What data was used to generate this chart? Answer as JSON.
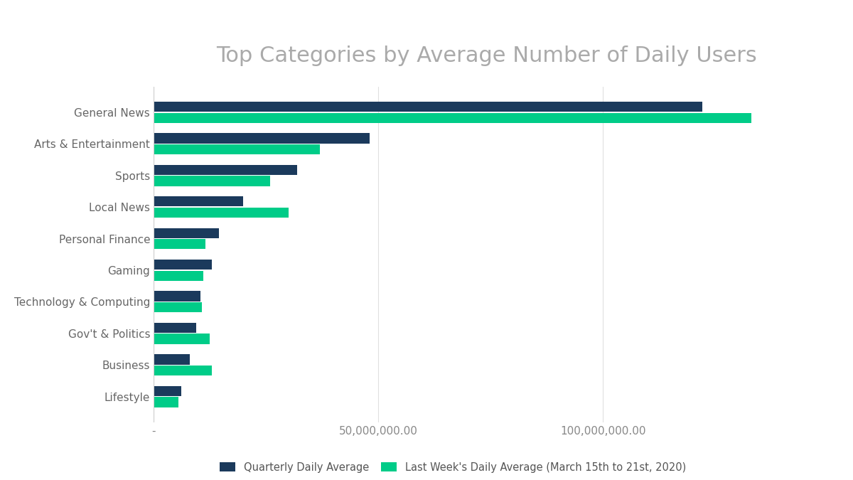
{
  "title": "Top Categories by Average Number of Daily Users",
  "categories": [
    "General News",
    "Arts & Entertainment",
    "Sports",
    "Local News",
    "Personal Finance",
    "Gaming",
    "Technology & Computing",
    "Gov't & Politics",
    "Business",
    "Lifestyle"
  ],
  "quarterly_daily_avg": [
    122000000,
    48000000,
    32000000,
    20000000,
    14500000,
    13000000,
    10500000,
    9500000,
    8000000,
    6200000
  ],
  "last_week_daily_avg": [
    133000000,
    37000000,
    26000000,
    30000000,
    11500000,
    11000000,
    10800000,
    12500000,
    13000000,
    5500000
  ],
  "color_quarterly": "#1b3a5c",
  "color_last_week": "#00cc88",
  "title_color": "#aaaaaa",
  "background_color": "#ffffff",
  "xlim": [
    0,
    148000000
  ],
  "xticks": [
    0,
    50000000,
    100000000
  ],
  "xtick_labels": [
    "-",
    "50,000,000.00",
    "100,000,000.00"
  ],
  "legend_labels": [
    "Quarterly Daily Average",
    "Last Week's Daily Average (March 15th to 21st, 2020)"
  ],
  "title_fontsize": 22,
  "tick_fontsize": 11,
  "legend_fontsize": 10.5,
  "bar_height": 0.32,
  "bar_gap": 0.03
}
